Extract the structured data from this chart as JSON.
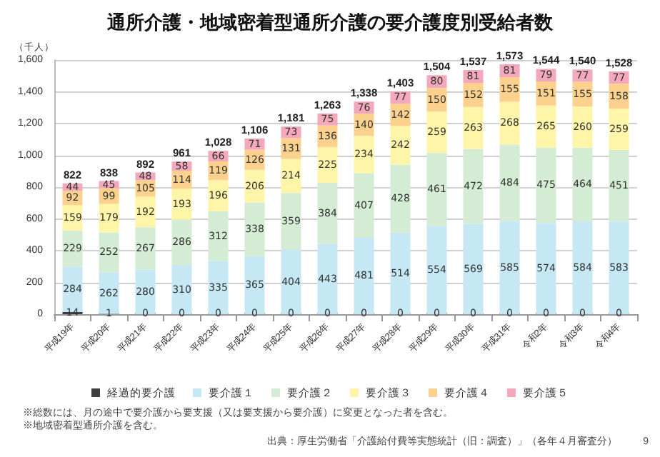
{
  "chart_data": {
    "type": "bar",
    "title": "通所介護・地域密着型通所介護の要介護度別受給者数",
    "ylabel": "（千人）",
    "categories": [
      "平成19年",
      "平成20年",
      "平成21年",
      "平成22年",
      "平成23年",
      "平成24年",
      "平成25年",
      "平成26年",
      "平成27年",
      "平成28年",
      "平成29年",
      "平成30年",
      "平成31年",
      "令和2年",
      "令和3年",
      "令和4年"
    ],
    "series": [
      {
        "name": "経過的要介護",
        "color": "#404040",
        "values": [
          14,
          1,
          0,
          0,
          0,
          0,
          0,
          0,
          0,
          0,
          0,
          0,
          0,
          0,
          0,
          0
        ]
      },
      {
        "name": "要介護１",
        "color": "#c6e8f4",
        "values": [
          284,
          262,
          280,
          310,
          335,
          365,
          404,
          443,
          481,
          514,
          554,
          569,
          585,
          574,
          584,
          583
        ]
      },
      {
        "name": "要介護２",
        "color": "#d4ebd4",
        "values": [
          229,
          252,
          267,
          286,
          312,
          338,
          359,
          384,
          407,
          428,
          461,
          472,
          484,
          475,
          464,
          451
        ]
      },
      {
        "name": "要介護３",
        "color": "#fff5a8",
        "values": [
          159,
          179,
          192,
          193,
          196,
          206,
          214,
          225,
          234,
          242,
          259,
          263,
          268,
          265,
          260,
          259
        ]
      },
      {
        "name": "要介護４",
        "color": "#fcd18e",
        "values": [
          92,
          99,
          105,
          114,
          119,
          126,
          131,
          136,
          140,
          142,
          150,
          152,
          155,
          151,
          155,
          158
        ]
      },
      {
        "name": "要介護５",
        "color": "#f4a8bb",
        "values": [
          44,
          45,
          48,
          58,
          66,
          71,
          73,
          75,
          76,
          77,
          80,
          81,
          81,
          79,
          77,
          77
        ]
      }
    ],
    "stacked": true,
    "data_labels": true,
    "totals": [
      "822",
      "838",
      "892",
      "961",
      "1,028",
      "1,106",
      "1,181",
      "1,263",
      "1,338",
      "1,403",
      "1,504",
      "1,537",
      "1,573",
      "1,544",
      "1,540",
      "1,528"
    ],
    "ylim": [
      0,
      1600
    ],
    "yticks": [
      0,
      200,
      400,
      600,
      800,
      {
        "value": 1000,
        "label": "1,000"
      },
      {
        "value": 1200,
        "label": "1,200"
      },
      {
        "value": 1400,
        "label": "1,400"
      },
      {
        "value": 1600,
        "label": "1,600"
      }
    ],
    "grid": "y",
    "legend": "bottom",
    "annotations": [
      "※総数には、月の途中で要介護から要支援（又は要支援から要介護）に変更となった者を含む。",
      "※地域密着型通所介護を含む。",
      "出典：厚生労働省「介護給付費等実態統計（旧：調査）」（各年４月審査分）",
      "9"
    ]
  }
}
